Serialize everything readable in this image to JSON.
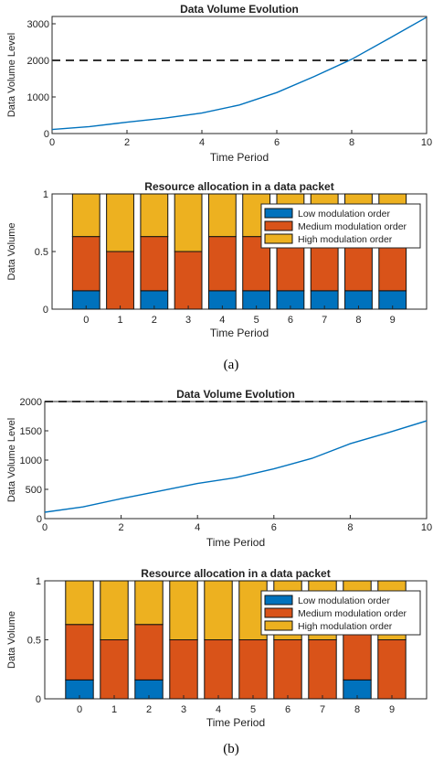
{
  "chart_data": [
    {
      "type": "line",
      "title": "Data Volume Evolution",
      "xlabel": "Time Period",
      "ylabel": "Data Volume Level",
      "xlim": [
        0,
        10
      ],
      "ylim": [
        0,
        3200
      ],
      "xticks": [
        0,
        2,
        4,
        6,
        8,
        10
      ],
      "xtick_labels": [
        "0",
        "2",
        "4",
        "6",
        "8",
        "10"
      ],
      "yticks": [
        0,
        1000,
        2000,
        3000
      ],
      "ytick_labels": [
        "0",
        "1000",
        "2000",
        "3000"
      ],
      "threshold": 2000,
      "x": [
        0,
        1,
        2,
        3,
        4,
        5,
        6,
        7,
        8,
        9,
        10
      ],
      "y": [
        110,
        190,
        310,
        420,
        560,
        780,
        1120,
        1560,
        2030,
        2600,
        3180
      ],
      "line_color": "#0072BD",
      "threshold_color": "#333333"
    },
    {
      "type": "bar",
      "stacked": true,
      "title": "Resource allocation in a data packet",
      "xlabel": "Time Period",
      "ylabel": "Data Volume",
      "categories": [
        "0",
        "1",
        "2",
        "3",
        "4",
        "5",
        "6",
        "7",
        "8",
        "9"
      ],
      "ylim": [
        0,
        1
      ],
      "yticks": [
        0,
        0.5,
        1
      ],
      "ytick_labels": [
        "0",
        "0.5",
        "1"
      ],
      "legend_position": "top-right",
      "series": [
        {
          "name": "Low modulation order",
          "color": "#0072BD",
          "values": [
            0.16,
            0,
            0.16,
            0,
            0.16,
            0.16,
            0.16,
            0.16,
            0.16,
            0.16
          ]
        },
        {
          "name": "Medium modulation order",
          "color": "#D95319",
          "values": [
            0.47,
            0.5,
            0.47,
            0.5,
            0.47,
            0.47,
            0.47,
            0.47,
            0.47,
            0.47
          ]
        },
        {
          "name": "High modulation order",
          "color": "#EDB120",
          "values": [
            0.37,
            0.5,
            0.37,
            0.5,
            0.37,
            0.37,
            0.37,
            0.37,
            0.37,
            0.37
          ]
        }
      ]
    },
    {
      "type": "line",
      "title": "Data Volume Evolution",
      "xlabel": "Time Period",
      "ylabel": "Data Volume Level",
      "xlim": [
        0,
        10
      ],
      "ylim": [
        0,
        2000
      ],
      "xticks": [
        0,
        2,
        4,
        6,
        8,
        10
      ],
      "xtick_labels": [
        "0",
        "2",
        "4",
        "6",
        "8",
        "10"
      ],
      "yticks": [
        0,
        500,
        1000,
        1500,
        2000
      ],
      "ytick_labels": [
        "0",
        "500",
        "1000",
        "1500",
        "2000"
      ],
      "threshold": 2000,
      "x": [
        0,
        1,
        2,
        3,
        4,
        5,
        6,
        7,
        8,
        9,
        10
      ],
      "y": [
        110,
        200,
        340,
        470,
        600,
        700,
        850,
        1030,
        1280,
        1470,
        1670
      ],
      "line_color": "#0072BD",
      "threshold_color": "#333333"
    },
    {
      "type": "bar",
      "stacked": true,
      "title": "Resource allocation in a data packet",
      "xlabel": "Time Period",
      "ylabel": "Data Volume",
      "categories": [
        "0",
        "1",
        "2",
        "3",
        "4",
        "5",
        "6",
        "7",
        "8",
        "9"
      ],
      "ylim": [
        0,
        1
      ],
      "yticks": [
        0,
        0.5,
        1
      ],
      "ytick_labels": [
        "0",
        "0.5",
        "1"
      ],
      "legend_position": "top-right",
      "series": [
        {
          "name": "Low modulation order",
          "color": "#0072BD",
          "values": [
            0.16,
            0,
            0.16,
            0,
            0,
            0,
            0,
            0,
            0.16,
            0
          ]
        },
        {
          "name": "Medium modulation order",
          "color": "#D95319",
          "values": [
            0.47,
            0.5,
            0.47,
            0.5,
            0.5,
            0.5,
            0.5,
            0.5,
            0.47,
            0.5
          ]
        },
        {
          "name": "High modulation order",
          "color": "#EDB120",
          "values": [
            0.37,
            0.5,
            0.37,
            0.5,
            0.5,
            0.5,
            0.5,
            0.5,
            0.37,
            0.5
          ]
        }
      ]
    }
  ],
  "captions": [
    "(a)",
    "(b)"
  ]
}
